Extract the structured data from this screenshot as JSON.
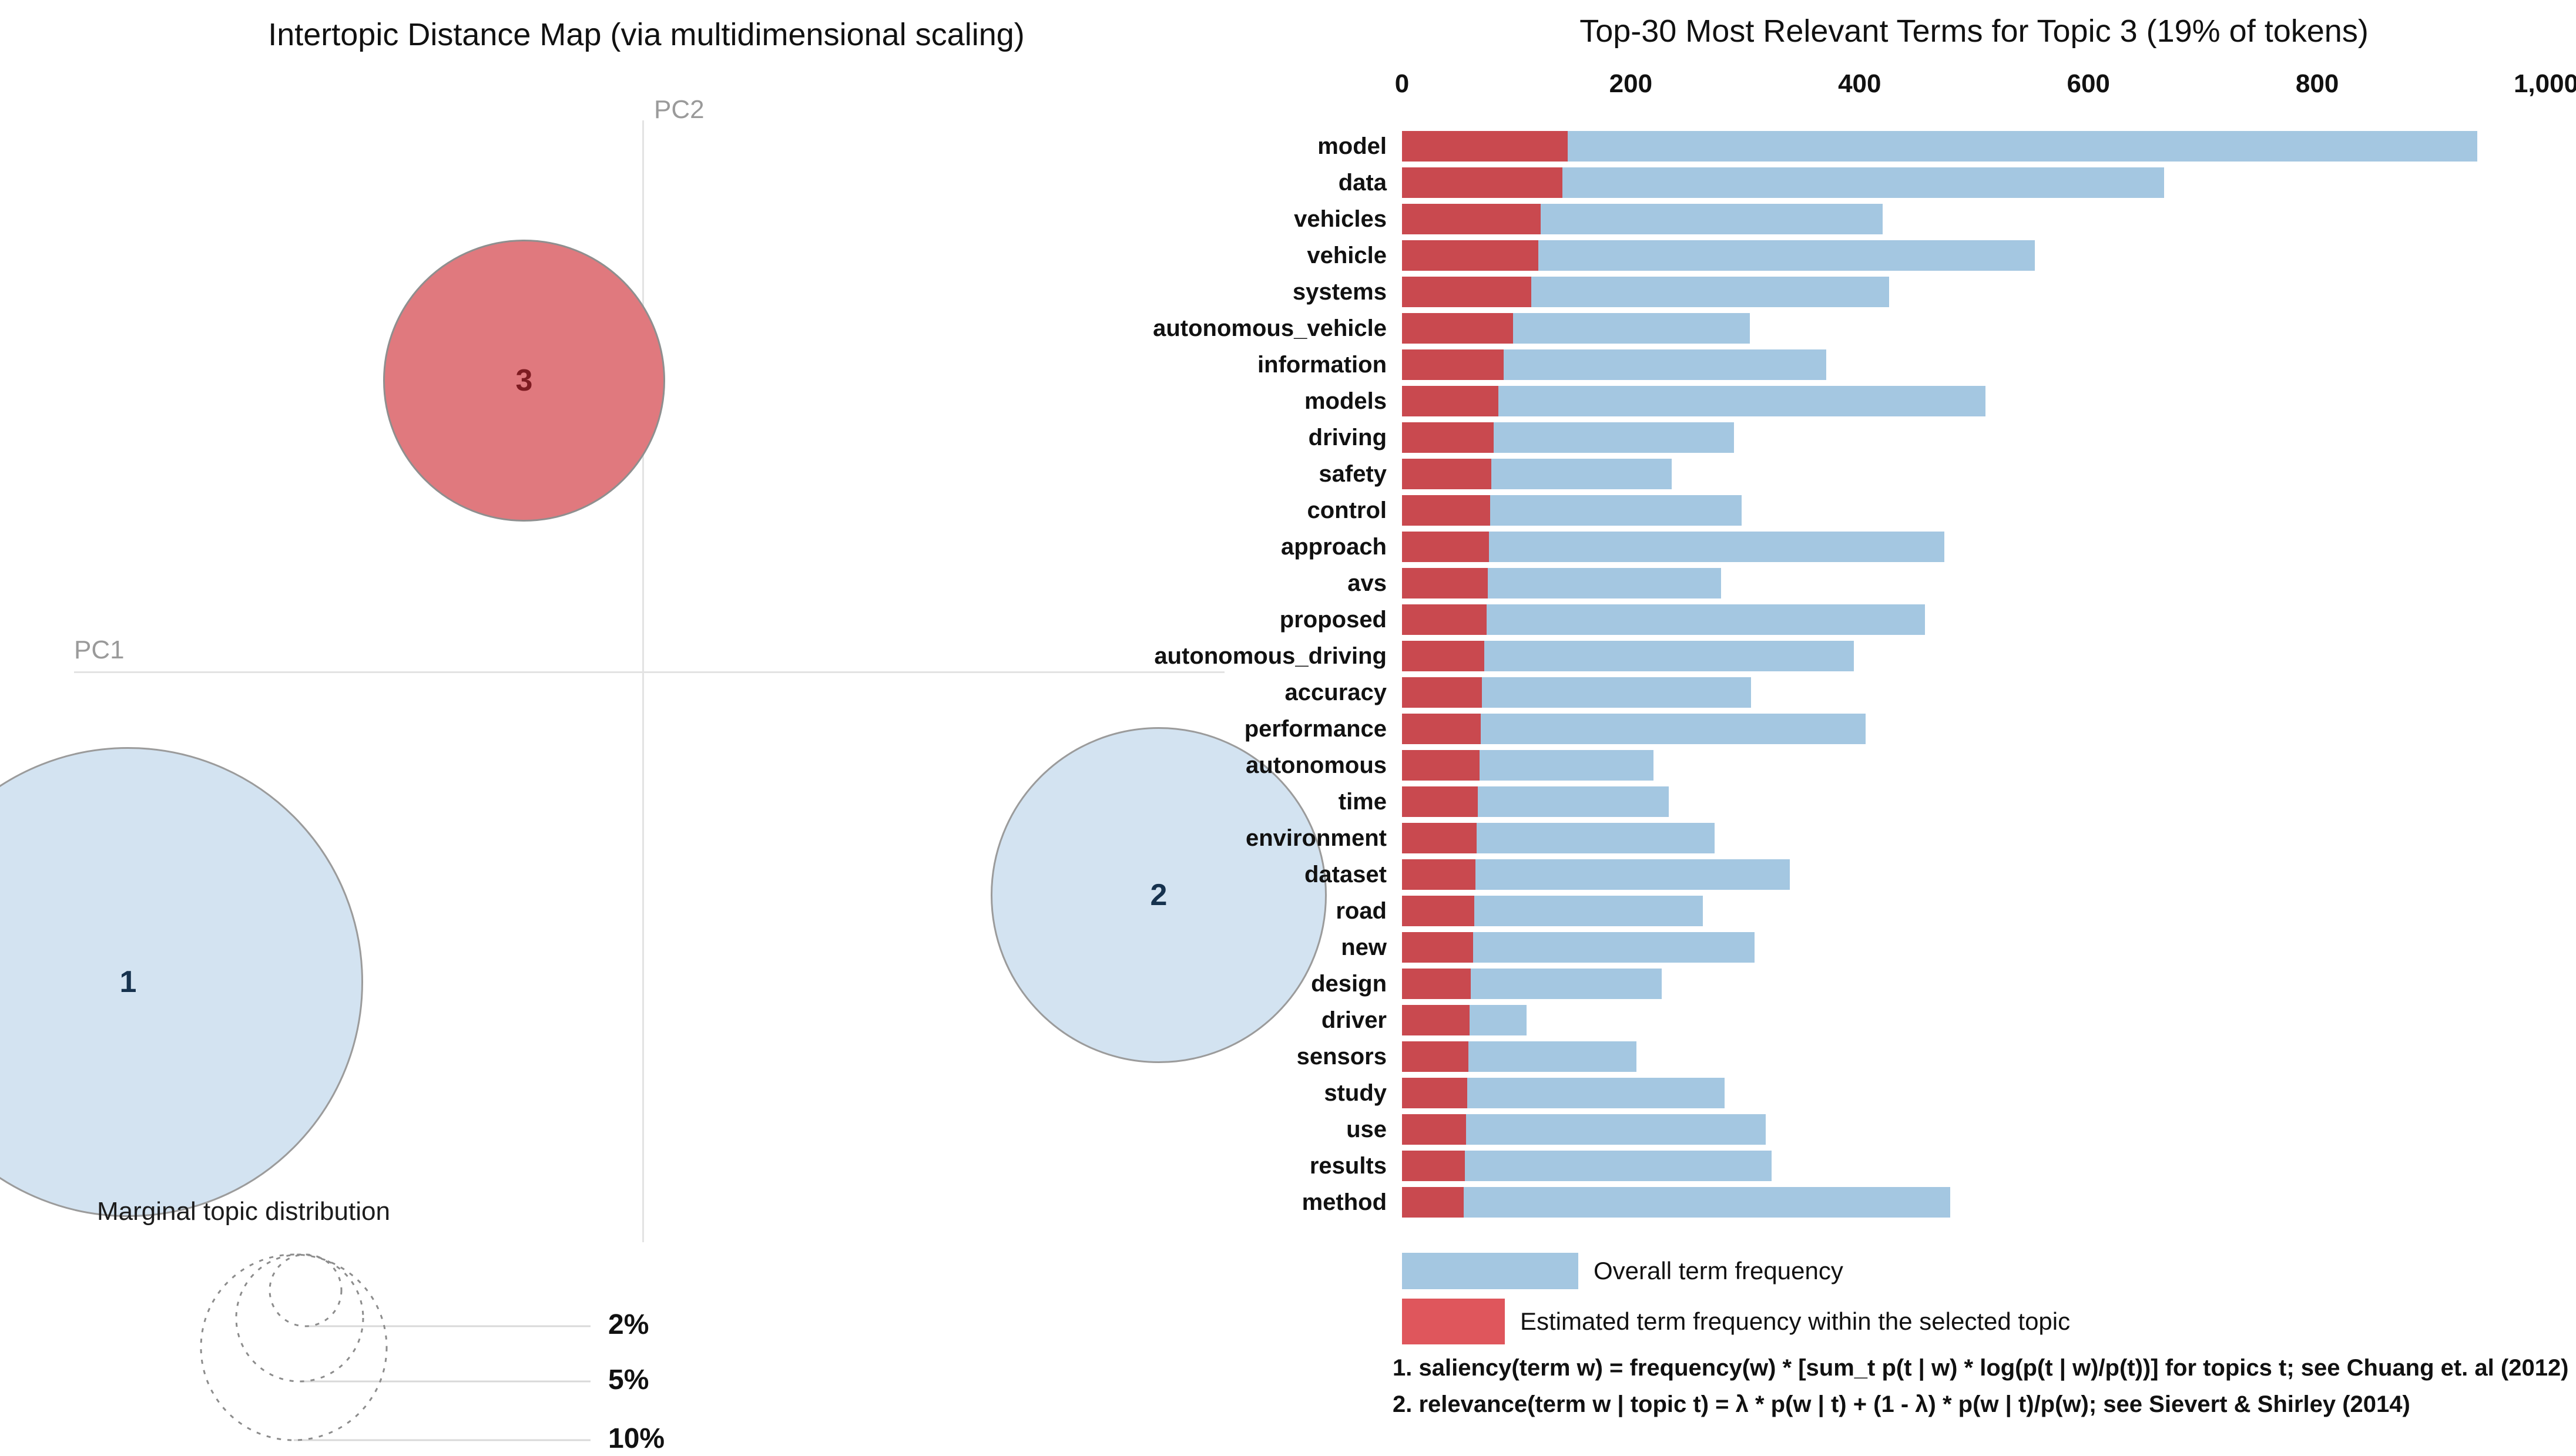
{
  "chart_data": [
    {
      "type": "scatter",
      "title": "Intertopic Distance Map (via multidimensional scaling)",
      "xlabel": "PC1",
      "ylabel": "PC2",
      "topics": [
        {
          "label": "1",
          "cx": 218,
          "cy": 1672,
          "r": 400,
          "fill": "#d3e3f1",
          "stroke": "#9b9b9b",
          "text_color": "#16324e",
          "selected": false
        },
        {
          "label": "2",
          "cx": 1972,
          "cy": 1524,
          "r": 286,
          "fill": "#d3e3f1",
          "stroke": "#9b9b9b",
          "text_color": "#16324e",
          "selected": false
        },
        {
          "label": "3",
          "cx": 892,
          "cy": 648,
          "r": 240,
          "fill": "#e0797e",
          "stroke": "#8f8f8f",
          "text_color": "#7d1b21",
          "selected": true
        }
      ],
      "marginal_legend": {
        "title": "Marginal topic distribution",
        "items": [
          {
            "label": "2%",
            "cx": 520,
            "r": 61,
            "line_y": 2258
          },
          {
            "label": "5%",
            "cx": 510,
            "r": 108,
            "line_y": 2352
          },
          {
            "label": "10%",
            "cx": 500,
            "r": 158,
            "line_y": 2452
          }
        ]
      }
    },
    {
      "type": "bar",
      "orientation": "horizontal",
      "title": "Top-30 Most Relevant Terms for Topic 3 (19% of tokens)",
      "xlim": [
        0,
        1000
      ],
      "xtick_labels": [
        "0",
        "200",
        "400",
        "600",
        "800",
        "1,000"
      ],
      "xtick_values": [
        0,
        200,
        400,
        600,
        800,
        1000
      ],
      "categories": [
        "model",
        "data",
        "vehicles",
        "vehicle",
        "systems",
        "autonomous_vehicle",
        "information",
        "models",
        "driving",
        "safety",
        "control",
        "approach",
        "avs",
        "proposed",
        "autonomous_driving",
        "accuracy",
        "performance",
        "autonomous",
        "time",
        "environment",
        "dataset",
        "road",
        "new",
        "design",
        "driver",
        "sensors",
        "study",
        "use",
        "results",
        "method"
      ],
      "series": [
        {
          "name": "Overall term frequency",
          "color": "#a4c7e1",
          "values": [
            940,
            666,
            420,
            553,
            426,
            304,
            371,
            510,
            290,
            236,
            297,
            474,
            279,
            457,
            395,
            305,
            405,
            220,
            233,
            273,
            339,
            263,
            308,
            227,
            109,
            205,
            282,
            318,
            323,
            479
          ]
        },
        {
          "name": "Estimated term frequency within the selected topic",
          "color": "#c9494f",
          "values": [
            145,
            140,
            121,
            119,
            113,
            97,
            89,
            84,
            80,
            78,
            77,
            76,
            75,
            74,
            72,
            70,
            69,
            68,
            66,
            65,
            64,
            63,
            62,
            60,
            59,
            58,
            57,
            56,
            55,
            54
          ]
        }
      ],
      "legend": [
        {
          "label": "Overall term frequency",
          "color": "#a4c7e1"
        },
        {
          "label": "Estimated term frequency within the selected topic",
          "color": "#df565c"
        }
      ],
      "footnotes": [
        "1. saliency(term w) = frequency(w) * [sum_t p(t | w) * log(p(t | w)/p(t))] for topics t; see Chuang et. al (2012)",
        "2. relevance(term w | topic t) = λ * p(w | t) + (1 - λ) * p(w | t)/p(w); see Sievert & Shirley (2014)"
      ]
    }
  ]
}
